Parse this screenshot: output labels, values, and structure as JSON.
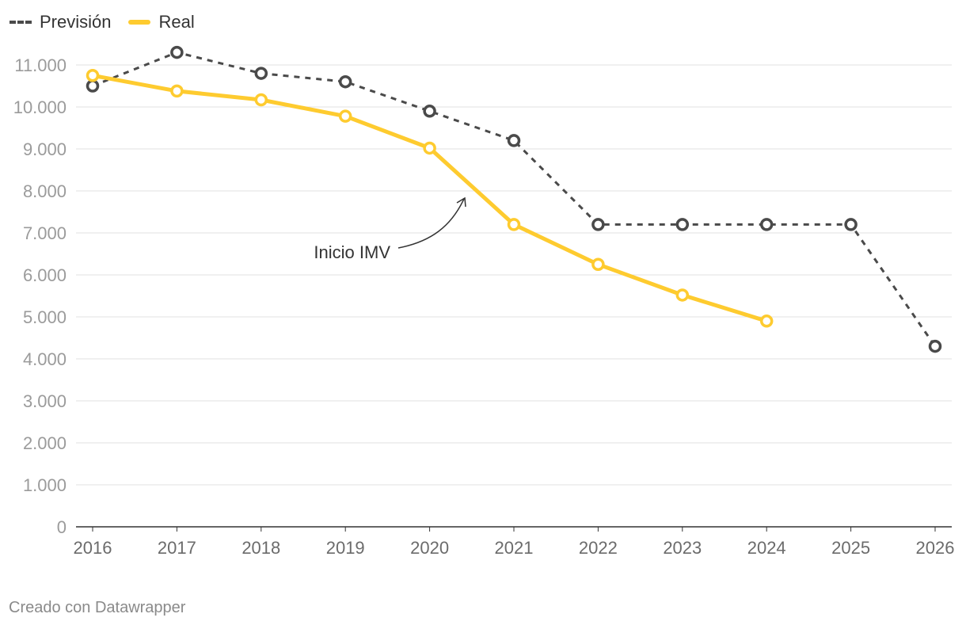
{
  "chart_data": {
    "type": "line",
    "title": "",
    "xlabel": "",
    "ylabel": "",
    "x": [
      2016,
      2017,
      2018,
      2019,
      2020,
      2021,
      2022,
      2023,
      2024,
      2025,
      2026
    ],
    "x_tick_labels": [
      "2016",
      "2017",
      "2018",
      "2019",
      "2020",
      "2021",
      "2022",
      "2023",
      "2024",
      "2025",
      "2026"
    ],
    "ylim": [
      0,
      11000
    ],
    "y_ticks": [
      0,
      1000,
      2000,
      3000,
      4000,
      5000,
      6000,
      7000,
      8000,
      9000,
      10000,
      11000
    ],
    "y_tick_labels": [
      "0",
      "1.000",
      "2.000",
      "3.000",
      "4.000",
      "5.000",
      "6.000",
      "7.000",
      "8.000",
      "9.000",
      "10.000",
      "11.000"
    ],
    "grid": true,
    "legend_position": "top-left",
    "series": [
      {
        "name": "Previsión",
        "style": "dashed",
        "color": "#4a4a4a",
        "x": [
          2016,
          2017,
          2018,
          2019,
          2020,
          2021,
          2022,
          2023,
          2024,
          2025,
          2026
        ],
        "values": [
          10500,
          11300,
          10800,
          10600,
          9900,
          9200,
          7200,
          7200,
          7200,
          7200,
          4300
        ]
      },
      {
        "name": "Real",
        "style": "solid",
        "color": "#fecb2f",
        "x": [
          2016,
          2017,
          2018,
          2019,
          2020,
          2021,
          2022,
          2023,
          2024
        ],
        "values": [
          10750,
          10380,
          10170,
          9780,
          9020,
          7200,
          6250,
          5520,
          4900
        ]
      }
    ],
    "annotations": [
      {
        "text": "Inicio IMV",
        "x": 2020.5,
        "y": 7800
      }
    ]
  },
  "legend": {
    "forecast_label": "Previsión",
    "real_label": "Real"
  },
  "footer": {
    "source": "Creado con Datawrapper"
  },
  "colors": {
    "forecast": "#4a4a4a",
    "real": "#fecb2f",
    "grid": "#e2e2e2",
    "axis": "#333333",
    "tick_text": "#9b9b9b",
    "x_tick_text": "#6b6b6b"
  }
}
